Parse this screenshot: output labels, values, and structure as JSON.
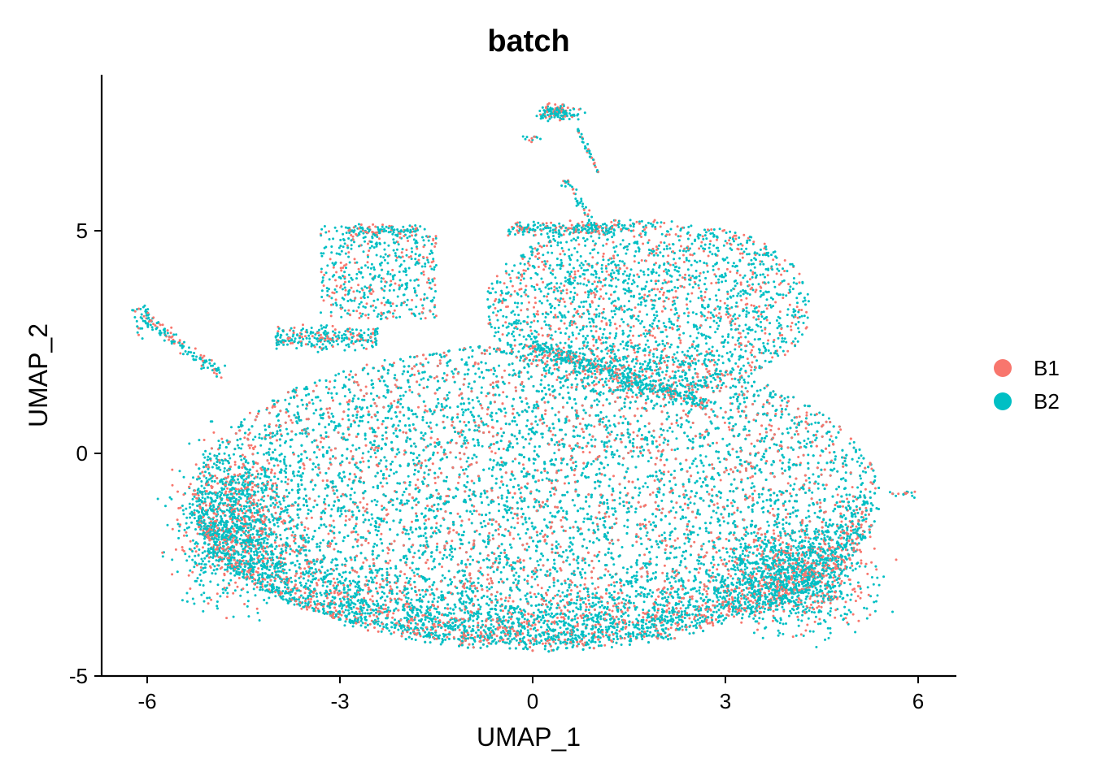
{
  "chart_data": {
    "type": "scatter",
    "title": "batch",
    "xlabel": "UMAP_1",
    "ylabel": "UMAP_2",
    "xlim": [
      -6.7,
      6.6
    ],
    "ylim": [
      -5.0,
      8.5
    ],
    "xticks": [
      -6,
      -3,
      0,
      3,
      6
    ],
    "xtick_labels": [
      "-6",
      "-3",
      "0",
      "3",
      "6"
    ],
    "yticks": [
      -5,
      0,
      5
    ],
    "ytick_labels": [
      "-5",
      "0",
      "5"
    ],
    "grid": false,
    "legend_position": "right",
    "series": [
      {
        "name": "B1",
        "color": "#F8766D",
        "approx_share": 0.28
      },
      {
        "name": "B2",
        "color": "#00BFC4",
        "approx_share": 0.72
      }
    ],
    "regions": [
      {
        "label": "main body",
        "x_range": [
          -5.3,
          5.4
        ],
        "y_range": [
          -4.4,
          2.7
        ],
        "density": "high"
      },
      {
        "label": "upper left island",
        "x_range": [
          -3.3,
          -1.5
        ],
        "y_range": [
          3.0,
          5.1
        ],
        "density": "medium"
      },
      {
        "label": "upper right lobe",
        "x_range": [
          -0.7,
          4.2
        ],
        "y_range": [
          2.2,
          5.3
        ],
        "density": "high"
      },
      {
        "label": "top tail",
        "x_range": [
          -0.3,
          1.3
        ],
        "y_range": [
          5.5,
          7.8
        ],
        "density": "low"
      },
      {
        "label": "left branch",
        "x_range": [
          -6.1,
          -4.8
        ],
        "y_range": [
          1.5,
          3.3
        ],
        "density": "low"
      },
      {
        "label": "right tip",
        "x_range": [
          5.4,
          5.9
        ],
        "y_range": [
          -1.0,
          -0.8
        ],
        "density": "low"
      }
    ]
  }
}
